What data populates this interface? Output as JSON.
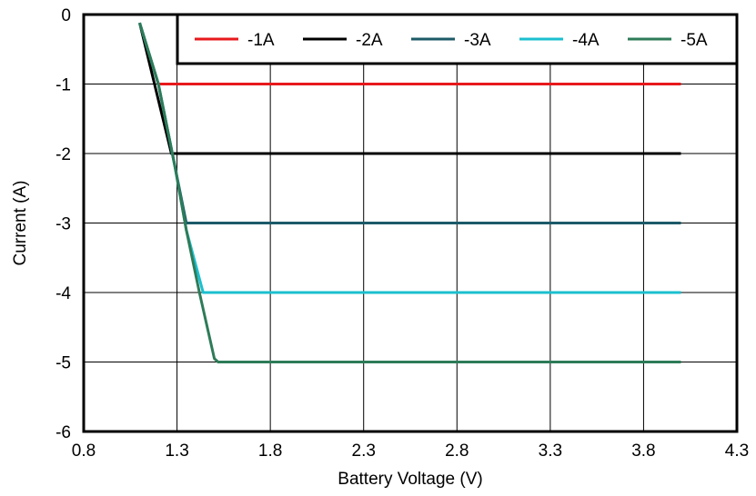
{
  "chart_data": {
    "type": "line",
    "xlabel": "Battery Voltage (V)",
    "ylabel": "Current (A)",
    "xlim": [
      0.8,
      4.3
    ],
    "ylim": [
      -6,
      0
    ],
    "x_ticks": [
      "0.8",
      "1.3",
      "1.8",
      "2.3",
      "2.8",
      "3.3",
      "3.8",
      "4.3"
    ],
    "y_ticks": [
      "0",
      "-1",
      "-2",
      "-3",
      "-4",
      "-5",
      "-6"
    ],
    "grid": true,
    "legend_position": "top-right",
    "series": [
      {
        "name": "-1A",
        "color": "#e8191c",
        "points": [
          [
            1.1,
            -0.12
          ],
          [
            1.2,
            -1.0
          ],
          [
            4.0,
            -1.0
          ]
        ]
      },
      {
        "name": "-2A",
        "color": "#000000",
        "points": [
          [
            1.1,
            -0.12
          ],
          [
            1.27,
            -2.0
          ],
          [
            4.0,
            -2.0
          ]
        ]
      },
      {
        "name": "-3A",
        "color": "#1c5a68",
        "points": [
          [
            1.1,
            -0.12
          ],
          [
            1.2,
            -1.0
          ],
          [
            1.29,
            -2.2
          ],
          [
            1.35,
            -3.0
          ],
          [
            4.0,
            -3.0
          ]
        ]
      },
      {
        "name": "-4A",
        "color": "#1bbfcf",
        "points": [
          [
            1.1,
            -0.12
          ],
          [
            1.2,
            -1.0
          ],
          [
            1.29,
            -2.2
          ],
          [
            1.35,
            -3.1
          ],
          [
            1.44,
            -4.0
          ],
          [
            4.0,
            -4.0
          ]
        ]
      },
      {
        "name": "-5A",
        "color": "#2e7b58",
        "points": [
          [
            1.1,
            -0.12
          ],
          [
            1.2,
            -1.0
          ],
          [
            1.29,
            -2.2
          ],
          [
            1.35,
            -3.1
          ],
          [
            1.42,
            -4.0
          ],
          [
            1.5,
            -4.95
          ],
          [
            1.52,
            -5.0
          ],
          [
            4.0,
            -5.0
          ]
        ]
      }
    ]
  }
}
